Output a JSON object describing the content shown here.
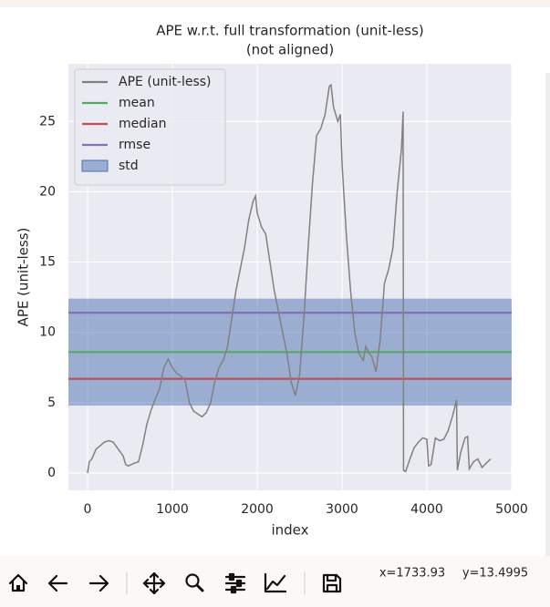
{
  "chart_data": {
    "type": "line",
    "title": [
      "APE w.r.t. full transformation (unit-less)",
      "(not aligned)"
    ],
    "xlabel": "index",
    "ylabel": "APE (unit-less)",
    "x": [
      0,
      20,
      50,
      100,
      200,
      250,
      300,
      350,
      420,
      450,
      480,
      550,
      600,
      650,
      700,
      750,
      800,
      850,
      900,
      950,
      1000,
      1050,
      1100,
      1150,
      1200,
      1250,
      1300,
      1350,
      1400,
      1450,
      1500,
      1550,
      1600,
      1650,
      1700,
      1750,
      1800,
      1850,
      1900,
      1950,
      1980,
      2000,
      2050,
      2100,
      2150,
      2200,
      2250,
      2300,
      2350,
      2400,
      2450,
      2500,
      2550,
      2600,
      2650,
      2700,
      2750,
      2800,
      2850,
      2870,
      2900,
      2950,
      2980,
      3000,
      3050,
      3100,
      3150,
      3200,
      3250,
      3280,
      3320,
      3350,
      3400,
      3450,
      3500,
      3550,
      3600,
      3650,
      3700,
      3720,
      3725,
      3750,
      3800,
      3850,
      3900,
      3950,
      4000,
      4020,
      4050,
      4100,
      4150,
      4200,
      4250,
      4300,
      4350,
      4360,
      4400,
      4450,
      4480,
      4500,
      4550,
      4600,
      4650,
      4700,
      4750
    ],
    "series": [
      {
        "name": "APE (unit-less)",
        "color": "#808080",
        "values": [
          0,
          0.8,
          1,
          1.7,
          2.2,
          2.3,
          2.2,
          1.8,
          1.2,
          0.6,
          0.5,
          0.7,
          0.8,
          2.0,
          3.5,
          4.5,
          5.3,
          6.0,
          7.5,
          8.1,
          7.5,
          7.1,
          6.9,
          6.6,
          5,
          4.4,
          4.2,
          4.0,
          4.3,
          5,
          6.5,
          7.5,
          8,
          9,
          11,
          13,
          14.5,
          16,
          18,
          19.3,
          19.7,
          18.5,
          17.5,
          17,
          15,
          13,
          11.5,
          10,
          8.5,
          6.5,
          5.5,
          7,
          11,
          16,
          20.5,
          24,
          24.5,
          25.5,
          27.5,
          27.6,
          26,
          25,
          25.5,
          22,
          17,
          13,
          10,
          8.5,
          8.0,
          9,
          8.5,
          8.3,
          7.2,
          9.5,
          13.5,
          14.5,
          16,
          20,
          23,
          25.7,
          0.2,
          0.1,
          1,
          1.8,
          2.2,
          2.5,
          2.4,
          0.5,
          0.6,
          2.5,
          2.3,
          2.4,
          3,
          4,
          5.2,
          0.2,
          1.5,
          2.5,
          2.6,
          0.3,
          0.8,
          1.0,
          0.4,
          0.7,
          1.0
        ]
      }
    ],
    "reference_lines": [
      {
        "name": "mean",
        "color": "#55a868",
        "value": 8.6
      },
      {
        "name": "median",
        "color": "#c44e52",
        "value": 6.7
      },
      {
        "name": "rmse",
        "color": "#8172b2",
        "value": 11.4
      }
    ],
    "band": {
      "name": "std",
      "color": "#4c72b0",
      "center": 8.6,
      "value": 3.8
    },
    "xlim": [
      -226,
      5000
    ],
    "ylim": [
      -1.23,
      29.1
    ],
    "xticks": [
      0,
      1000,
      2000,
      3000,
      4000,
      5000
    ],
    "yticks": [
      0,
      5,
      10,
      15,
      20,
      25
    ],
    "grid": true,
    "legend": "upper left"
  },
  "toolbar": {
    "status": [
      "x=1733.93",
      "y=13.4995"
    ]
  }
}
